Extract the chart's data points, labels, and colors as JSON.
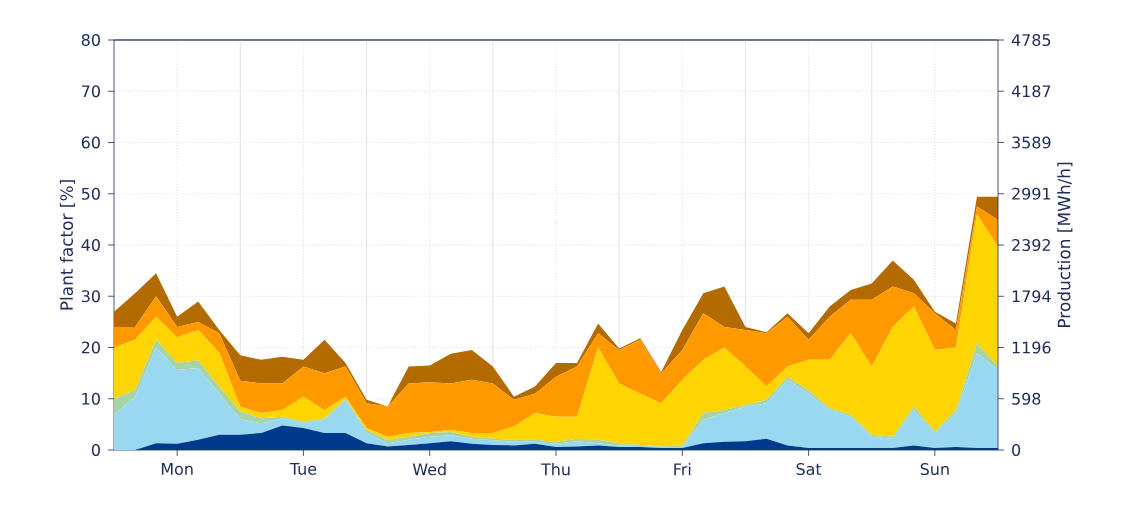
{
  "chart_data": {
    "type": "area",
    "stacked": true,
    "grid": true,
    "ylabel": "Plant factor [%]",
    "y2label": "Production [MWh/h]",
    "categories": [
      null,
      null,
      null,
      "Mon",
      null,
      null,
      null,
      null,
      null,
      "Tue",
      null,
      null,
      null,
      null,
      null,
      "Wed",
      null,
      null,
      null,
      null,
      null,
      "Thu",
      null,
      null,
      null,
      null,
      null,
      "Fri",
      null,
      null,
      null,
      null,
      null,
      "Sat",
      null,
      null,
      null,
      null,
      null,
      "Sun",
      null,
      null,
      null
    ],
    "ylim": [
      0,
      80
    ],
    "yticks": [
      0,
      10,
      20,
      30,
      40,
      50,
      60,
      70,
      80
    ],
    "y2lim": [
      0,
      4785
    ],
    "y2ticks": [
      0,
      598,
      1196,
      1794,
      2392,
      2991,
      3589,
      4187,
      4785
    ],
    "series": [
      {
        "color": "#003a8c",
        "values": [
          0,
          0,
          1.3,
          1.2,
          2,
          3,
          3,
          3.3,
          4.8,
          4.3,
          3.3,
          3.3,
          1.3,
          0.7,
          1,
          1.3,
          1.7,
          1.2,
          1,
          0.9,
          1.2,
          0.6,
          0.7,
          0.9,
          0.6,
          0.6,
          0.4,
          0.4,
          1.3,
          1.6,
          1.7,
          2.2,
          0.9,
          0.4,
          0.4,
          0.4,
          0.4,
          0.4,
          0.9,
          0.4,
          0.6,
          0.4,
          0.4
        ]
      },
      {
        "color": "#9ad8f0",
        "values": [
          7,
          10.4,
          18.7,
          14.4,
          14,
          8,
          3,
          1.9,
          1.4,
          0.9,
          2.6,
          6.5,
          2,
          0.6,
          1,
          1.3,
          1.2,
          1,
          0.9,
          0.7,
          0.4,
          0.6,
          1,
          0.4,
          0.3,
          0.2,
          0.2,
          0.2,
          4.6,
          5.6,
          6.8,
          6.9,
          12.8,
          10.6,
          7.4,
          6.1,
          2.2,
          1.8,
          6.9,
          2.9,
          6.6,
          18.5,
          15.2
        ]
      },
      {
        "color": "#a8d4a4",
        "values": [
          3,
          1.3,
          1.5,
          1.4,
          1.5,
          1.4,
          1.5,
          1,
          0.3,
          0.3,
          0.3,
          0.2,
          0.6,
          0.7,
          0.6,
          0.7,
          0.6,
          0.4,
          0.3,
          0.4,
          0.4,
          0.4,
          0.5,
          0.7,
          0.4,
          0.2,
          0.1,
          0.3,
          1.3,
          0.6,
          0.3,
          0.7,
          0.6,
          0.7,
          0.4,
          0.4,
          0.4,
          0.4,
          0.7,
          0.3,
          0.6,
          1.9,
          0.7
        ]
      },
      {
        "color": "#ffd400",
        "values": [
          10,
          9.8,
          4.5,
          5,
          5.9,
          6.6,
          1,
          1,
          1.3,
          4.9,
          1.6,
          0.4,
          0.4,
          0.6,
          0.7,
          0.2,
          0.4,
          0.7,
          1.1,
          2.6,
          5.2,
          4.9,
          4.3,
          18,
          11.7,
          10,
          8.4,
          12.8,
          10.4,
          12.2,
          7.5,
          2.6,
          2,
          5.9,
          9.4,
          15.9,
          13.3,
          21.4,
          19.5,
          15.9,
          12.2,
          25.2,
          23.4
        ]
      },
      {
        "color": "#ff9900",
        "values": [
          4,
          2.5,
          4,
          2,
          1.6,
          3.8,
          5,
          5.8,
          5.2,
          5.9,
          7.2,
          5.9,
          4.8,
          5.9,
          9.7,
          9.7,
          9.1,
          10.4,
          9.7,
          5.2,
          3.8,
          7.8,
          9.8,
          2.8,
          6.5,
          10.5,
          5.9,
          5.8,
          9.1,
          4,
          7.1,
          10.4,
          9.7,
          3.9,
          8.4,
          6.5,
          13,
          7.9,
          2.6,
          7.2,
          3.4,
          1.5,
          5.2
        ]
      },
      {
        "color": "#b36b00",
        "values": [
          3,
          6.6,
          4.5,
          2,
          4,
          0.6,
          5,
          4.6,
          5.2,
          1.3,
          6.5,
          0.7,
          0.7,
          0,
          3.3,
          3.3,
          5.8,
          5.8,
          3.3,
          0.6,
          1.4,
          2.7,
          0.7,
          1.9,
          0.3,
          0.3,
          0.2,
          3.9,
          3.9,
          7.9,
          0.6,
          0.2,
          0.7,
          1.3,
          2,
          1.9,
          3.2,
          5.1,
          2.6,
          0.3,
          1.3,
          1.9,
          4.5
        ]
      }
    ]
  }
}
